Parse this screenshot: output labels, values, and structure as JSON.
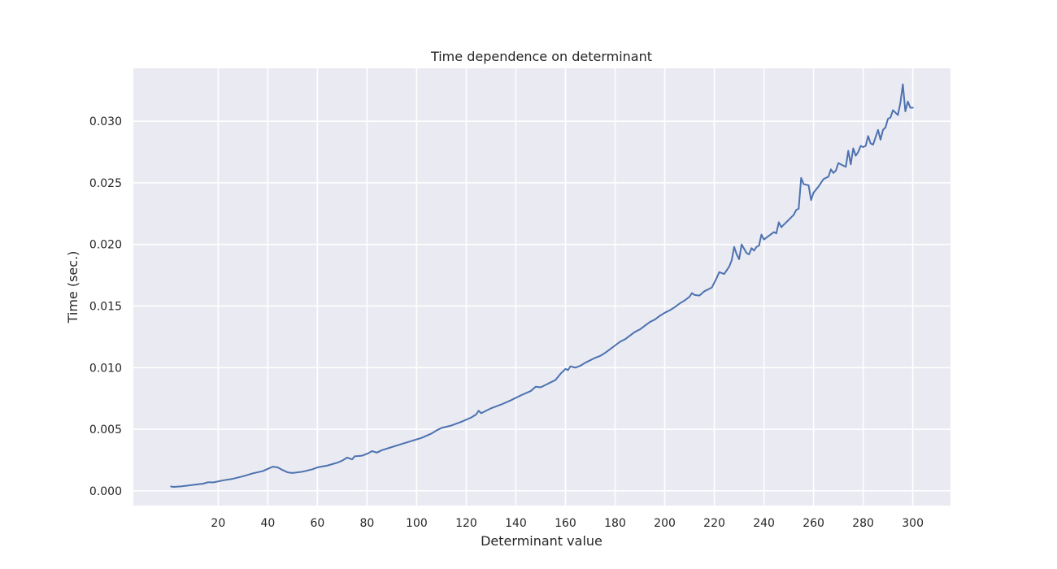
{
  "chart_data": {
    "type": "line",
    "title": "Time dependence on determinant",
    "xlabel": "Determinant value",
    "ylabel": "Time (sec.)",
    "xlim": [
      -14.2,
      315.2
    ],
    "ylim": [
      -0.0012,
      0.0343
    ],
    "xticks": [
      20,
      40,
      60,
      80,
      100,
      120,
      140,
      160,
      180,
      200,
      220,
      240,
      260,
      280,
      300
    ],
    "yticks": [
      0.0,
      0.005,
      0.01,
      0.015,
      0.02,
      0.025,
      0.03
    ],
    "ytick_labels": [
      "0.000",
      "0.005",
      "0.010",
      "0.015",
      "0.020",
      "0.025",
      "0.030"
    ],
    "grid": true,
    "background": "#eaeaf2",
    "line_color": "#4c72b0",
    "series": [
      {
        "points": [
          [
            1,
            0.00035
          ],
          [
            2,
            0.00032
          ],
          [
            5,
            0.00036
          ],
          [
            10,
            0.00048
          ],
          [
            14,
            0.00058
          ],
          [
            16,
            0.0007
          ],
          [
            18,
            0.00068
          ],
          [
            22,
            0.00085
          ],
          [
            26,
            0.00098
          ],
          [
            30,
            0.00118
          ],
          [
            34,
            0.00142
          ],
          [
            38,
            0.0016
          ],
          [
            40,
            0.00178
          ],
          [
            42,
            0.00196
          ],
          [
            44,
            0.0019
          ],
          [
            46,
            0.00168
          ],
          [
            48,
            0.0015
          ],
          [
            50,
            0.00145
          ],
          [
            54,
            0.00155
          ],
          [
            58,
            0.00175
          ],
          [
            60,
            0.0019
          ],
          [
            64,
            0.00205
          ],
          [
            68,
            0.00228
          ],
          [
            70,
            0.00245
          ],
          [
            72,
            0.0027
          ],
          [
            74,
            0.00255
          ],
          [
            75,
            0.0028
          ],
          [
            78,
            0.00285
          ],
          [
            80,
            0.003
          ],
          [
            82,
            0.00322
          ],
          [
            84,
            0.0031
          ],
          [
            86,
            0.0033
          ],
          [
            90,
            0.00355
          ],
          [
            94,
            0.0038
          ],
          [
            98,
            0.00405
          ],
          [
            102,
            0.0043
          ],
          [
            106,
            0.00465
          ],
          [
            108,
            0.0049
          ],
          [
            110,
            0.0051
          ],
          [
            114,
            0.0053
          ],
          [
            118,
            0.0056
          ],
          [
            122,
            0.00595
          ],
          [
            124,
            0.0062
          ],
          [
            125,
            0.0065
          ],
          [
            126,
            0.0063
          ],
          [
            130,
            0.0067
          ],
          [
            134,
            0.007
          ],
          [
            138,
            0.00735
          ],
          [
            142,
            0.00775
          ],
          [
            146,
            0.0081
          ],
          [
            148,
            0.00845
          ],
          [
            150,
            0.0084
          ],
          [
            152,
            0.0086
          ],
          [
            154,
            0.0088
          ],
          [
            156,
            0.009
          ],
          [
            158,
            0.0095
          ],
          [
            160,
            0.0099
          ],
          [
            161,
            0.0098
          ],
          [
            162,
            0.0101
          ],
          [
            164,
            0.01
          ],
          [
            166,
            0.01015
          ],
          [
            168,
            0.0104
          ],
          [
            170,
            0.0106
          ],
          [
            172,
            0.0108
          ],
          [
            174,
            0.01095
          ],
          [
            176,
            0.0112
          ],
          [
            178,
            0.0115
          ],
          [
            180,
            0.0118
          ],
          [
            182,
            0.0121
          ],
          [
            184,
            0.0123
          ],
          [
            186,
            0.0126
          ],
          [
            188,
            0.0129
          ],
          [
            190,
            0.0131
          ],
          [
            192,
            0.0134
          ],
          [
            194,
            0.0137
          ],
          [
            196,
            0.0139
          ],
          [
            198,
            0.0142
          ],
          [
            200,
            0.01445
          ],
          [
            202,
            0.01465
          ],
          [
            204,
            0.0149
          ],
          [
            206,
            0.0152
          ],
          [
            208,
            0.01545
          ],
          [
            210,
            0.01575
          ],
          [
            211,
            0.01605
          ],
          [
            212,
            0.0159
          ],
          [
            214,
            0.01585
          ],
          [
            216,
            0.0162
          ],
          [
            218,
            0.0164
          ],
          [
            219,
            0.0165
          ],
          [
            220,
            0.0169
          ],
          [
            221,
            0.0173
          ],
          [
            222,
            0.01775
          ],
          [
            224,
            0.0176
          ],
          [
            226,
            0.0182
          ],
          [
            227,
            0.0187
          ],
          [
            228,
            0.0198
          ],
          [
            229,
            0.0192
          ],
          [
            230,
            0.0188
          ],
          [
            231,
            0.02
          ],
          [
            233,
            0.0193
          ],
          [
            234,
            0.0192
          ],
          [
            235,
            0.0197
          ],
          [
            236,
            0.0195
          ],
          [
            237,
            0.0198
          ],
          [
            238,
            0.0199
          ],
          [
            239,
            0.0208
          ],
          [
            240,
            0.0204
          ],
          [
            242,
            0.0207
          ],
          [
            244,
            0.021
          ],
          [
            245,
            0.0209
          ],
          [
            246,
            0.0218
          ],
          [
            247,
            0.0214
          ],
          [
            248,
            0.0216
          ],
          [
            250,
            0.022
          ],
          [
            252,
            0.0224
          ],
          [
            253,
            0.0228
          ],
          [
            254,
            0.0229
          ],
          [
            255,
            0.0254
          ],
          [
            256,
            0.0249
          ],
          [
            258,
            0.0248
          ],
          [
            259,
            0.0236
          ],
          [
            260,
            0.0242
          ],
          [
            262,
            0.0247
          ],
          [
            263,
            0.025
          ],
          [
            264,
            0.0253
          ],
          [
            266,
            0.0255
          ],
          [
            267,
            0.0261
          ],
          [
            268,
            0.0258
          ],
          [
            269,
            0.026
          ],
          [
            270,
            0.0266
          ],
          [
            272,
            0.0264
          ],
          [
            273,
            0.0263
          ],
          [
            274,
            0.0276
          ],
          [
            275,
            0.0265
          ],
          [
            276,
            0.0278
          ],
          [
            277,
            0.0272
          ],
          [
            278,
            0.0275
          ],
          [
            279,
            0.028
          ],
          [
            280,
            0.0279
          ],
          [
            281,
            0.028
          ],
          [
            282,
            0.0288
          ],
          [
            283,
            0.0282
          ],
          [
            284,
            0.0281
          ],
          [
            286,
            0.0293
          ],
          [
            287,
            0.0285
          ],
          [
            288,
            0.0293
          ],
          [
            289,
            0.0295
          ],
          [
            290,
            0.0302
          ],
          [
            291,
            0.0303
          ],
          [
            292,
            0.0309
          ],
          [
            293,
            0.0307
          ],
          [
            294,
            0.0305
          ],
          [
            295,
            0.0315
          ],
          [
            296,
            0.033
          ],
          [
            297,
            0.0308
          ],
          [
            298,
            0.0316
          ],
          [
            299,
            0.0311
          ],
          [
            300,
            0.0311
          ]
        ]
      }
    ]
  }
}
